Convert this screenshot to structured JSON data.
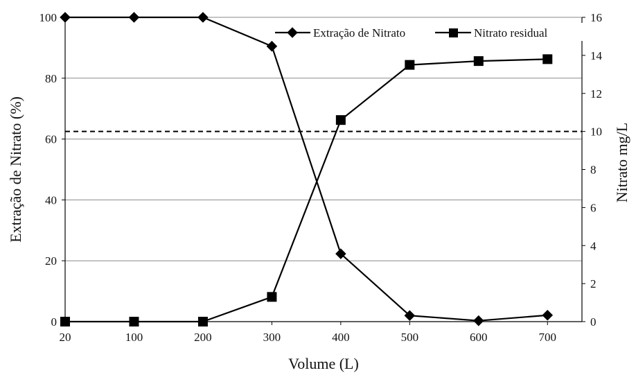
{
  "chart_data": {
    "type": "line",
    "categories": [
      "20",
      "100",
      "200",
      "300",
      "400",
      "500",
      "600",
      "700"
    ],
    "series": [
      {
        "name": "Extração de Nitrato",
        "axis": "left",
        "marker": "diamond",
        "color": "#000000",
        "values": [
          100,
          100,
          100,
          90.5,
          22.3,
          2.0,
          0.3,
          2.1
        ]
      },
      {
        "name": "Nitrato residual",
        "axis": "right",
        "marker": "square",
        "color": "#000000",
        "values": [
          0,
          0,
          0,
          1.3,
          10.6,
          13.5,
          13.7,
          13.8
        ]
      }
    ],
    "xlabel": "Volume (L)",
    "ylabel_left": "Extração de Nitrato  (%)",
    "ylabel_right": "Nitrato mg/L",
    "ylim_left": [
      0,
      100
    ],
    "ylim_right": [
      0,
      16
    ],
    "yticks_left": [
      0,
      20,
      40,
      60,
      80,
      100
    ],
    "yticks_right": [
      0,
      2,
      4,
      6,
      8,
      10,
      12,
      14,
      16
    ],
    "reference_line": {
      "axis": "right",
      "value": 10,
      "style": "dashed"
    },
    "grid": "horizontal gridlines at left-axis ticks",
    "legend_position": "top-right"
  }
}
